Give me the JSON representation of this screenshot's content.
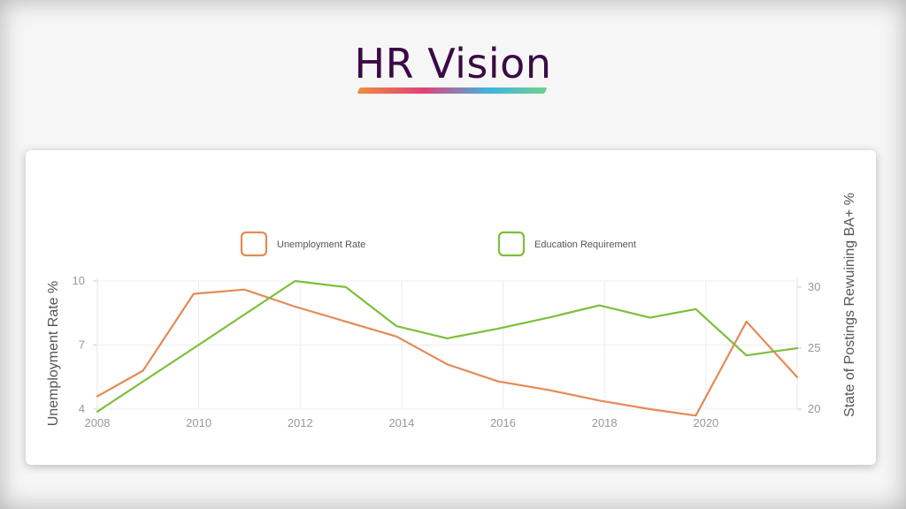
{
  "brand": {
    "title": "HR Vision",
    "accent_colors": [
      "#f08a3c",
      "#e0437a",
      "#3fb5e0",
      "#6fd08a"
    ]
  },
  "chart_data": {
    "type": "line",
    "xlabel": "",
    "ylabel": "Unemployment Rate %",
    "y2label": "State of Postings Rewuining BA+ %",
    "xticks": [
      "2008",
      "2010",
      "2012",
      "2014",
      "2016",
      "2018",
      "2020"
    ],
    "xlim": [
      2008,
      2021.8
    ],
    "ylim": [
      4,
      10
    ],
    "yticks": [
      "4",
      "7",
      "10"
    ],
    "y2lim": [
      20,
      30.5
    ],
    "y2ticks": [
      "20",
      "25",
      "30"
    ],
    "grid": true,
    "legend": "top-center",
    "series": [
      {
        "name": "Unemployment Rate",
        "axis": "left",
        "color": "#e58a55",
        "x": [
          2008,
          2008.9,
          2009.9,
          2010.9,
          2011.9,
          2012.9,
          2013.9,
          2014.9,
          2015.9,
          2016.9,
          2017.9,
          2018.9,
          2019.8,
          2020.8,
          2021.8
        ],
        "y": [
          4.6,
          5.8,
          9.4,
          9.6,
          8.8,
          8.1,
          7.4,
          6.1,
          5.3,
          4.9,
          4.4,
          4.0,
          3.7,
          8.1,
          5.5
        ]
      },
      {
        "name": "Education Requirement",
        "axis": "right",
        "color": "#7cbf3a",
        "x": [
          2008,
          2009.9,
          2011.9,
          2012.9,
          2013.9,
          2014.9,
          2015.9,
          2016.9,
          2017.9,
          2018.9,
          2019.8,
          2020.8,
          2021.8
        ],
        "y": [
          19.8,
          25.0,
          30.5,
          30.0,
          26.8,
          25.8,
          26.6,
          27.5,
          28.5,
          27.5,
          28.2,
          24.4,
          25.0
        ]
      }
    ]
  }
}
